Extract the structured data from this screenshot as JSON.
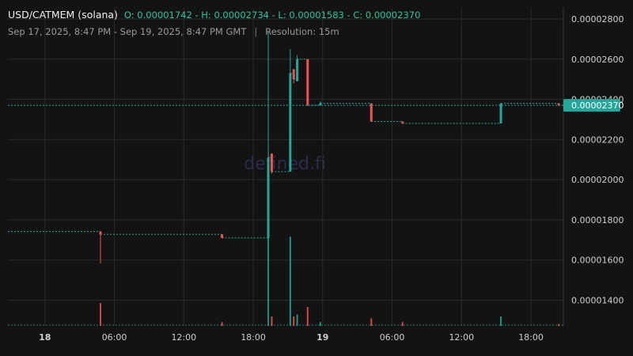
{
  "header": {
    "pair": "USD/CATMEM (solana)",
    "ohlc": "O: 0.00001742 - H: 0.00002734 - L: 0.00001583 - C: 0.00002370",
    "range": "Sep 17, 2025, 8:47 PM - Sep 19, 2025, 8:47 PM GMT",
    "separator": "|",
    "resolution": "Resolution: 15m"
  },
  "watermark": "defined.fi",
  "current_price_label": "0.00002370",
  "colors": {
    "background": "#131313",
    "up": "#26a69a",
    "down": "#ef5350",
    "grid": "#2a2a2a",
    "text": "#cfcfcf"
  },
  "chart_data": {
    "type": "candlestick",
    "x_tick_labels": [
      "18",
      "06:00",
      "12:00",
      "18:00",
      "19",
      "06:00",
      "12:00",
      "18:00"
    ],
    "x_tick_hours": [
      3.2,
      9.2,
      15.2,
      21.2,
      27.2,
      33.2,
      39.2,
      45.2
    ],
    "x_range_hours": [
      0,
      48
    ],
    "y_tick_labels": [
      "0.00001400",
      "0.00001600",
      "0.00001800",
      "0.00002000",
      "0.00002200",
      "0.00002400",
      "0.00002600",
      "0.00002800"
    ],
    "y_ticks": [
      1.4e-05,
      1.6e-05,
      1.8e-05,
      2e-05,
      2.2e-05,
      2.4e-05,
      2.6e-05,
      2.8e-05
    ],
    "ylim": [
      1.272e-05,
      2.855e-05
    ],
    "current_price": 2.37e-05,
    "candles": [
      {
        "t": 8.0,
        "o": 1.742e-05,
        "h": 1.742e-05,
        "l": 1.583e-05,
        "c": 1.728e-05,
        "v": 0.12
      },
      {
        "t": 18.5,
        "o": 1.728e-05,
        "h": 1.728e-05,
        "l": 1.71e-05,
        "c": 1.71e-05,
        "v": 0.02
      },
      {
        "t": 22.5,
        "o": 1.71e-05,
        "h": 2.734e-05,
        "l": 1.71e-05,
        "c": 2.11e-05,
        "v": 0.47
      },
      {
        "t": 22.8,
        "o": 2.13e-05,
        "h": 2.13e-05,
        "l": 2.03e-05,
        "c": 2.04e-05,
        "v": 0.05
      },
      {
        "t": 24.4,
        "o": 2.04e-05,
        "h": 2.65e-05,
        "l": 2.04e-05,
        "c": 2.53e-05,
        "v": 0.47
      },
      {
        "t": 24.7,
        "o": 2.55e-05,
        "h": 2.55e-05,
        "l": 2.48e-05,
        "c": 2.5e-05,
        "v": 0.05
      },
      {
        "t": 25.0,
        "o": 2.49e-05,
        "h": 2.62e-05,
        "l": 2.49e-05,
        "c": 2.6e-05,
        "v": 0.06
      },
      {
        "t": 25.9,
        "o": 2.6e-05,
        "h": 2.6e-05,
        "l": 2.37e-05,
        "c": 2.37e-05,
        "v": 0.1
      },
      {
        "t": 27.0,
        "o": 2.37e-05,
        "h": 2.39e-05,
        "l": 2.37e-05,
        "c": 2.38e-05,
        "v": 0.02
      },
      {
        "t": 31.4,
        "o": 2.38e-05,
        "h": 2.38e-05,
        "l": 2.29e-05,
        "c": 2.29e-05,
        "v": 0.04
      },
      {
        "t": 34.1,
        "o": 2.29e-05,
        "h": 2.29e-05,
        "l": 2.28e-05,
        "c": 2.28e-05,
        "v": 0.02
      },
      {
        "t": 42.6,
        "o": 2.28e-05,
        "h": 2.38e-05,
        "l": 2.28e-05,
        "c": 2.38e-05,
        "v": 0.05
      },
      {
        "t": 47.6,
        "o": 2.38e-05,
        "h": 2.38e-05,
        "l": 2.37e-05,
        "c": 2.37e-05,
        "v": 0.01
      }
    ]
  }
}
